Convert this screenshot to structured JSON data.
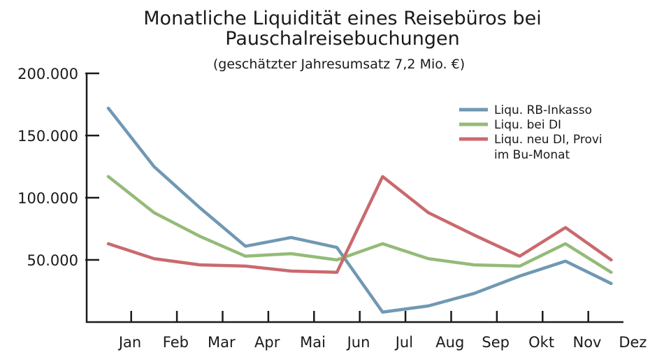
{
  "chart_data": {
    "type": "line",
    "title_line1": "Monatliche Liquidität eines Reisebüros bei",
    "title_line2": "Pauschalreisebuchungen",
    "subtitle": "(geschätzter Jahresumsatz 7,2 Mio. €)",
    "xlabel": "",
    "ylabel": "",
    "ylim": [
      0,
      200000
    ],
    "y_ticks": [
      50000,
      100000,
      150000,
      200000
    ],
    "y_tick_labels": [
      "50.000",
      "100.000",
      "150.000",
      "200.000"
    ],
    "categories": [
      "Jan",
      "Feb",
      "Mar",
      "Apr",
      "Mai",
      "Jun",
      "Jul",
      "Aug",
      "Sep",
      "Okt",
      "Nov",
      "Dez"
    ],
    "grid": false,
    "legend_position": "top-right",
    "series": [
      {
        "name": "Liqu. RB-Inkasso",
        "color": "#7098b4",
        "values": [
          172000,
          125000,
          92000,
          61000,
          68000,
          60000,
          8000,
          13000,
          23000,
          37000,
          49000,
          31000
        ]
      },
      {
        "name": "Liqu. bei DI",
        "color": "#94bb78",
        "values": [
          117000,
          88000,
          69000,
          53000,
          55000,
          50000,
          63000,
          51000,
          46000,
          45000,
          63000,
          40000
        ]
      },
      {
        "name_line1": "Liqu. neu DI, Provi",
        "name_line2": "im Bu-Monat",
        "color": "#c96a6e",
        "values": [
          63000,
          51000,
          46000,
          45000,
          41000,
          40000,
          117000,
          88000,
          70000,
          53000,
          76000,
          50000
        ]
      }
    ]
  }
}
